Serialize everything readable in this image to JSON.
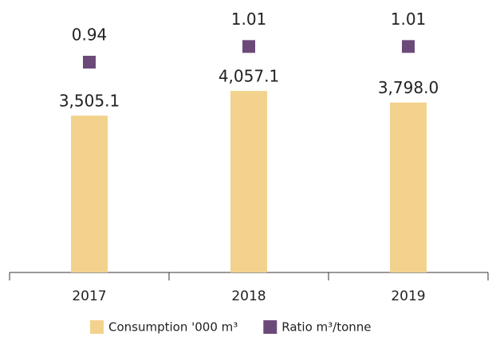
{
  "chart_data": {
    "type": "bar",
    "categories": [
      "2017",
      "2018",
      "2019"
    ],
    "series": [
      {
        "name": "Consumption '000 m³",
        "color": "#f3d28d",
        "values": [
          3505.1,
          4057.1,
          3798.0
        ],
        "value_labels": [
          "3,505.1",
          "4,057.1",
          "3,798.0"
        ]
      },
      {
        "name": "Ratio m³/tonne",
        "color": "#6b4a7a",
        "axis": "y2",
        "marker": "square",
        "values": [
          0.94,
          1.01,
          1.01
        ]
      }
    ],
    "ylim": [
      0,
      6000
    ],
    "y2lim": [
      0,
      1.2
    ],
    "legend": "bottom"
  }
}
